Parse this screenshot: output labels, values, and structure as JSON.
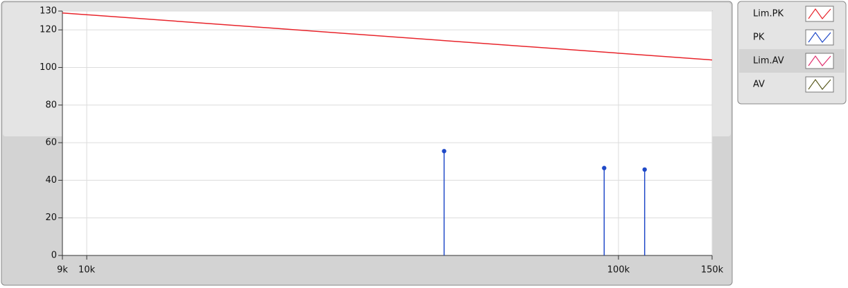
{
  "chart_data": {
    "type": "line",
    "xscale": "log",
    "xlim": [
      9000,
      150000
    ],
    "xticks": [
      {
        "value": 9000,
        "label": "9k"
      },
      {
        "value": 10000,
        "label": "10k"
      },
      {
        "value": 100000,
        "label": "100k"
      },
      {
        "value": 150000,
        "label": "150k"
      }
    ],
    "ylim": [
      0,
      130
    ],
    "yticks": [
      0,
      20,
      40,
      60,
      80,
      100,
      120,
      130
    ],
    "grid": true,
    "legend": "right",
    "series": [
      {
        "name": "Lim.PK",
        "color": "#e8232a",
        "style": "line",
        "x": [
          9000,
          150000
        ],
        "values": [
          129,
          104
        ]
      },
      {
        "name": "PK",
        "color": "#1f49c8",
        "style": "stem",
        "x": [
          47000,
          94000,
          112000
        ],
        "values": [
          55.5,
          46.5,
          45.7
        ]
      },
      {
        "name": "Lim.AV",
        "color": "#e0306e",
        "style": "line",
        "x": [],
        "values": []
      },
      {
        "name": "AV",
        "color": "#5a5a1e",
        "style": "line",
        "x": [],
        "values": []
      }
    ]
  }
}
